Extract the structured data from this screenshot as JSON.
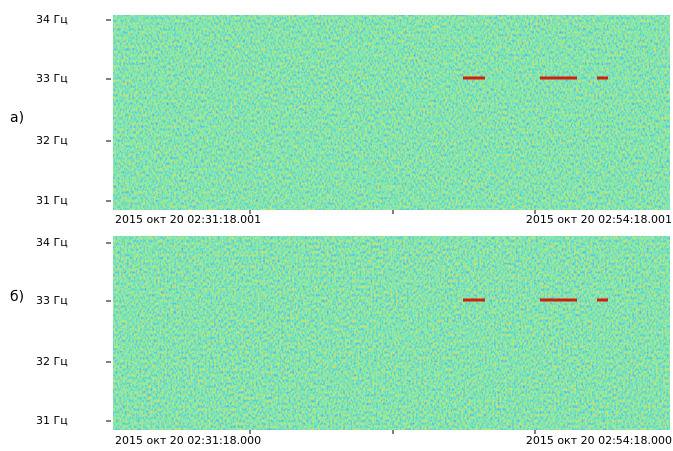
{
  "panels": [
    {
      "label": "а)",
      "y_labels": [
        "34 Гц",
        "33 Гц",
        "32 Гц",
        "31 Гц"
      ],
      "time_start": "2015 окт 20 02:31:18.001",
      "time_end": "2015 окт 20 02:54:18.001"
    },
    {
      "label": "б)",
      "y_labels": [
        "34 Гц",
        "33 Гц",
        "32 Гц",
        "31 Гц"
      ],
      "time_start": "2015 окт 20 02:31:18.000",
      "time_end": "2015 окт 20 02:54:18.000"
    }
  ]
}
